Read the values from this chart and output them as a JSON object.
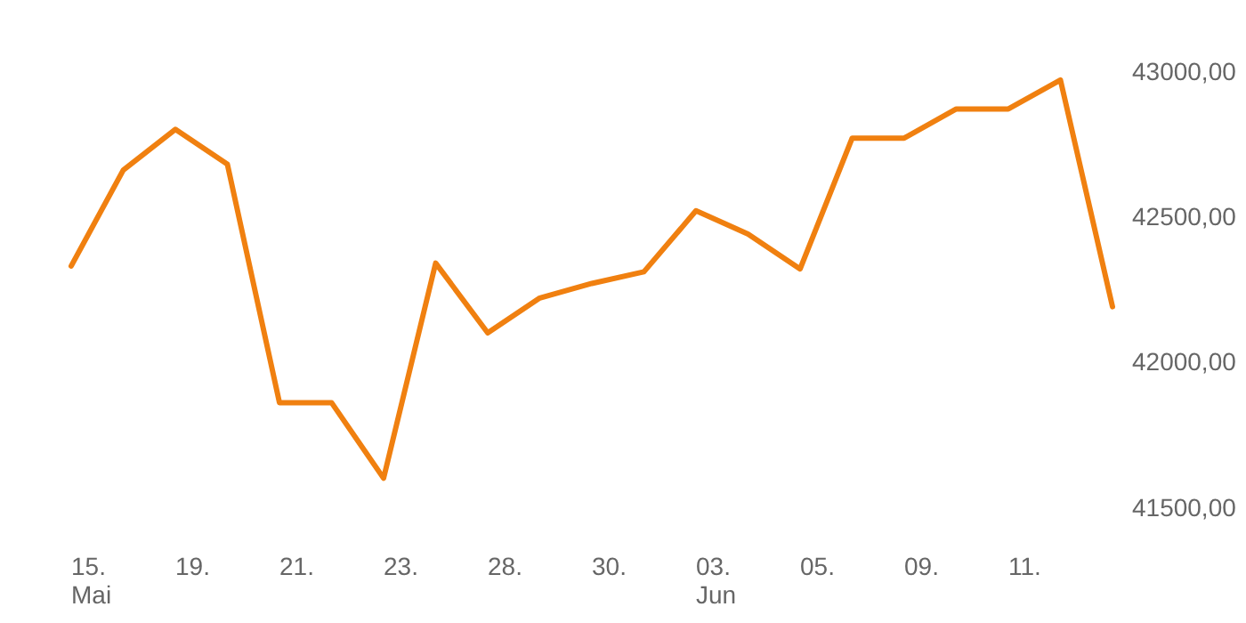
{
  "chart_data": {
    "type": "line",
    "categories": [
      "15.\nMai",
      null,
      "19.",
      null,
      "21.",
      null,
      "23.",
      null,
      "28.",
      null,
      "30.",
      null,
      "03.\nJun",
      null,
      "05.",
      null,
      "09.",
      null,
      "11.",
      null,
      null
    ],
    "series": [
      {
        "color": "#f08010",
        "values": [
          42330,
          42660,
          42800,
          42680,
          41860,
          41860,
          41600,
          42340,
          42100,
          42220,
          42270,
          42310,
          42520,
          42440,
          42320,
          42770,
          42770,
          42870,
          42870,
          42970,
          42190
        ]
      }
    ],
    "ylim": [
      41500,
      43000
    ],
    "yticks": [
      {
        "value": 41500,
        "label": "41500,00"
      },
      {
        "value": 42000,
        "label": "42000,00"
      },
      {
        "value": 42500,
        "label": "42500,00"
      },
      {
        "value": 43000,
        "label": "43000,00"
      }
    ],
    "grid": false,
    "marker": "none",
    "line_style": "solid"
  }
}
